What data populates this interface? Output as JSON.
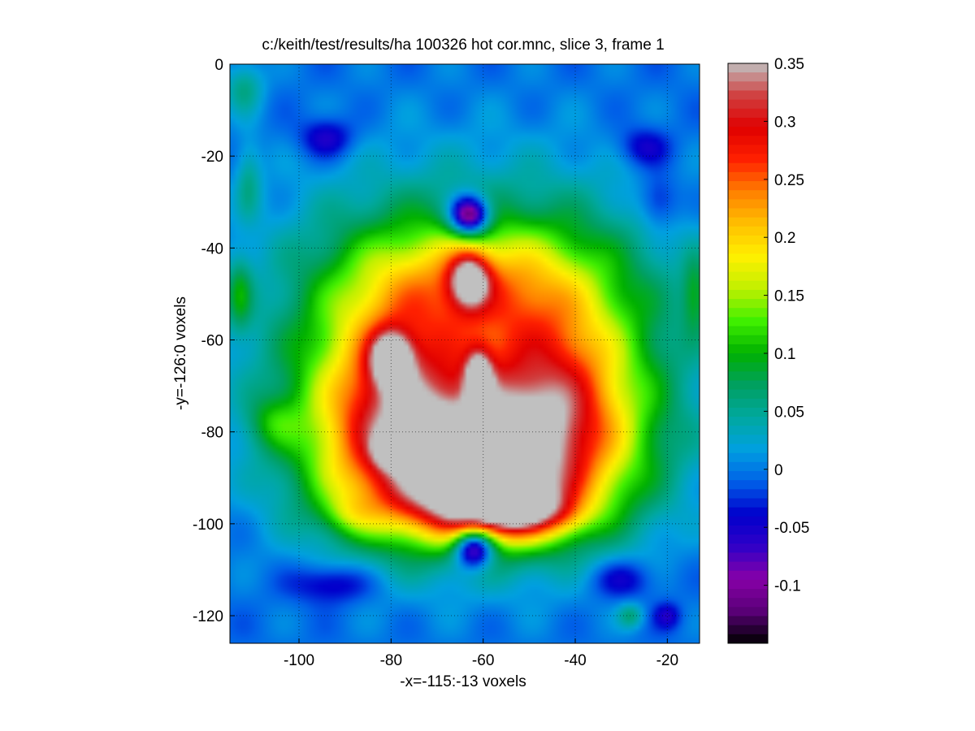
{
  "chart_data": {
    "type": "heatmap",
    "title": "c:/keith/test/results/ha 100326 hot cor.mnc, slice 3, frame 1",
    "xlabel": "-x=-115:-13 voxels",
    "ylabel": "-y=-126:0 voxels",
    "xlim": [
      -115,
      -13
    ],
    "ylim": [
      -126,
      0
    ],
    "y_reversed": true,
    "x_ticks": [
      -100,
      -80,
      -60,
      -40,
      -20
    ],
    "x_tick_labels": [
      "-100",
      "-80",
      "-60",
      "-40",
      "-20"
    ],
    "y_ticks": [
      0,
      -20,
      -40,
      -60,
      -80,
      -100,
      -120
    ],
    "y_tick_labels": [
      "0",
      "-20",
      "-40",
      "-60",
      "-80",
      "-100",
      "-120"
    ],
    "grid": "dotted",
    "colorbar": {
      "range": [
        -0.15,
        0.35
      ],
      "ticks": [
        0.35,
        0.3,
        0.25,
        0.2,
        0.15,
        0.1,
        0.05,
        0,
        -0.05,
        -0.1
      ],
      "tick_labels": [
        "0.35",
        "0.3",
        "0.25",
        "0.2",
        "0.15",
        "0.1",
        "0.05",
        "0",
        "-0.05",
        "-0.1"
      ],
      "colormap": [
        "#000000",
        "#5a0078",
        "#8800a8",
        "#3000c8",
        "#0000cc",
        "#0060e8",
        "#00a0e0",
        "#00a8a0",
        "#00a060",
        "#00b000",
        "#40f000",
        "#c0f000",
        "#fff000",
        "#ffc000",
        "#ff8000",
        "#ff2000",
        "#e00000",
        "#d04040",
        "#c0c0c0"
      ]
    },
    "background_value": -0.005,
    "blobs": [
      {
        "x": -78,
        "y": -58,
        "rx": 20,
        "ry": 20,
        "v": 0.13
      },
      {
        "x": -46,
        "y": -58,
        "rx": 20,
        "ry": 20,
        "v": 0.13
      },
      {
        "x": -75,
        "y": -84,
        "rx": 18,
        "ry": 14,
        "v": 0.14
      },
      {
        "x": -49,
        "y": -84,
        "rx": 18,
        "ry": 14,
        "v": 0.14
      },
      {
        "x": -62,
        "y": -48,
        "rx": 16,
        "ry": 9,
        "v": 0.1
      },
      {
        "x": -62,
        "y": -96,
        "rx": 16,
        "ry": 6,
        "v": 0.1
      },
      {
        "x": -72,
        "y": -85,
        "rx": 16,
        "ry": 12,
        "v": 0.08
      },
      {
        "x": -52,
        "y": -85,
        "rx": 16,
        "ry": 12,
        "v": 0.08
      },
      {
        "x": -80,
        "y": -70,
        "rx": 10,
        "ry": 14,
        "v": 0.07
      },
      {
        "x": -44,
        "y": -70,
        "rx": 10,
        "ry": 14,
        "v": 0.07
      },
      {
        "x": -67,
        "y": -70,
        "rx": 8,
        "ry": 18,
        "v": -0.04
      },
      {
        "x": -57,
        "y": -70,
        "rx": 8,
        "ry": 18,
        "v": -0.04
      },
      {
        "x": -80,
        "y": -64,
        "rx": 3,
        "ry": 4,
        "v": 0.2
      },
      {
        "x": -63,
        "y": -47,
        "rx": 3,
        "ry": 4,
        "v": 0.2
      },
      {
        "x": -61,
        "y": -68,
        "rx": 2,
        "ry": 4,
        "v": 0.17
      },
      {
        "x": -80,
        "y": -84,
        "rx": 2.5,
        "ry": 2.5,
        "v": 0.14
      },
      {
        "x": -61,
        "y": -93,
        "rx": 7,
        "ry": 6,
        "v": 0.15
      },
      {
        "x": -52,
        "y": -96,
        "rx": 5,
        "ry": 4,
        "v": 0.16
      },
      {
        "x": -54,
        "y": -95,
        "rx": 2,
        "ry": 1.5,
        "v": 0.06
      },
      {
        "x": -63,
        "y": -33,
        "rx": 3,
        "ry": 3,
        "v": -0.21
      },
      {
        "x": -62,
        "y": -105,
        "rx": 3,
        "ry": 3,
        "v": -0.21
      },
      {
        "x": -94,
        "y": -16,
        "rx": 4,
        "ry": 3,
        "v": -0.06
      },
      {
        "x": -25,
        "y": -18,
        "rx": 4,
        "ry": 3,
        "v": -0.05
      },
      {
        "x": -93,
        "y": -113,
        "rx": 6,
        "ry": 3,
        "v": -0.06
      },
      {
        "x": -30,
        "y": -112,
        "rx": 5,
        "ry": 3,
        "v": -0.05
      },
      {
        "x": -22,
        "y": -30,
        "rx": 3,
        "ry": 4,
        "v": -0.05
      },
      {
        "x": -106,
        "y": -78,
        "rx": 4,
        "ry": 4,
        "v": 0.05
      },
      {
        "x": -113,
        "y": -50,
        "rx": 2,
        "ry": 6,
        "v": 0.07
      },
      {
        "x": -14,
        "y": -50,
        "rx": 2,
        "ry": 6,
        "v": 0.07
      },
      {
        "x": -112,
        "y": -5,
        "rx": 3,
        "ry": 4,
        "v": 0.06
      },
      {
        "x": -111,
        "y": -25,
        "rx": 2,
        "ry": 6,
        "v": 0.05
      },
      {
        "x": -28,
        "y": -120,
        "rx": 2,
        "ry": 2,
        "v": 0.06
      },
      {
        "x": -20,
        "y": -120,
        "rx": 2,
        "ry": 2,
        "v": -0.05
      },
      {
        "x": -43,
        "y": -98,
        "rx": 4,
        "ry": 3,
        "v": 0.05
      },
      {
        "x": -89,
        "y": -98,
        "rx": 4,
        "ry": 3,
        "v": 0.04
      }
    ]
  }
}
